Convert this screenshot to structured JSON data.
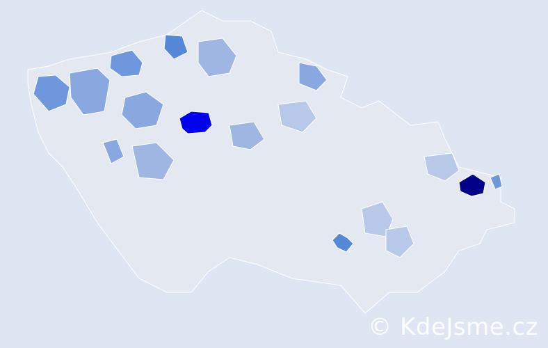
{
  "map": {
    "background_color": "#dde6f2",
    "base_fill": "#e4e8f0",
    "border_color": "#ffffff",
    "scale_colors": [
      "#eef1f7",
      "#d3dbea",
      "#b8c8e8",
      "#9fb6e3",
      "#6f97dd",
      "#5588d6",
      "#0000ee",
      "#000088"
    ],
    "highlighted_regions": [
      {
        "level": 7,
        "color": "#0000ee"
      },
      {
        "level": 8,
        "color": "#000088"
      },
      {
        "level": 6,
        "color": "#5588d6"
      },
      {
        "level": 6,
        "color": "#5588d6"
      },
      {
        "level": 5,
        "color": "#6f97dd"
      },
      {
        "level": 5,
        "color": "#6f97dd"
      },
      {
        "level": 4,
        "color": "#8aa8e0"
      },
      {
        "level": 4,
        "color": "#8aa8e0"
      },
      {
        "level": 4,
        "color": "#8aa8e0"
      },
      {
        "level": 3,
        "color": "#9fb6e3"
      },
      {
        "level": 3,
        "color": "#9fb6e3"
      },
      {
        "level": 3,
        "color": "#9fb6e3"
      },
      {
        "level": 2,
        "color": "#b8c8e8"
      },
      {
        "level": 2,
        "color": "#b8c8e8"
      },
      {
        "level": 2,
        "color": "#b8c8e8"
      },
      {
        "level": 2,
        "color": "#b8c8e8"
      },
      {
        "level": 5,
        "color": "#6f97dd"
      },
      {
        "level": 4,
        "color": "#8aa8e0"
      }
    ]
  },
  "watermark": "© KdeJsme.cz"
}
